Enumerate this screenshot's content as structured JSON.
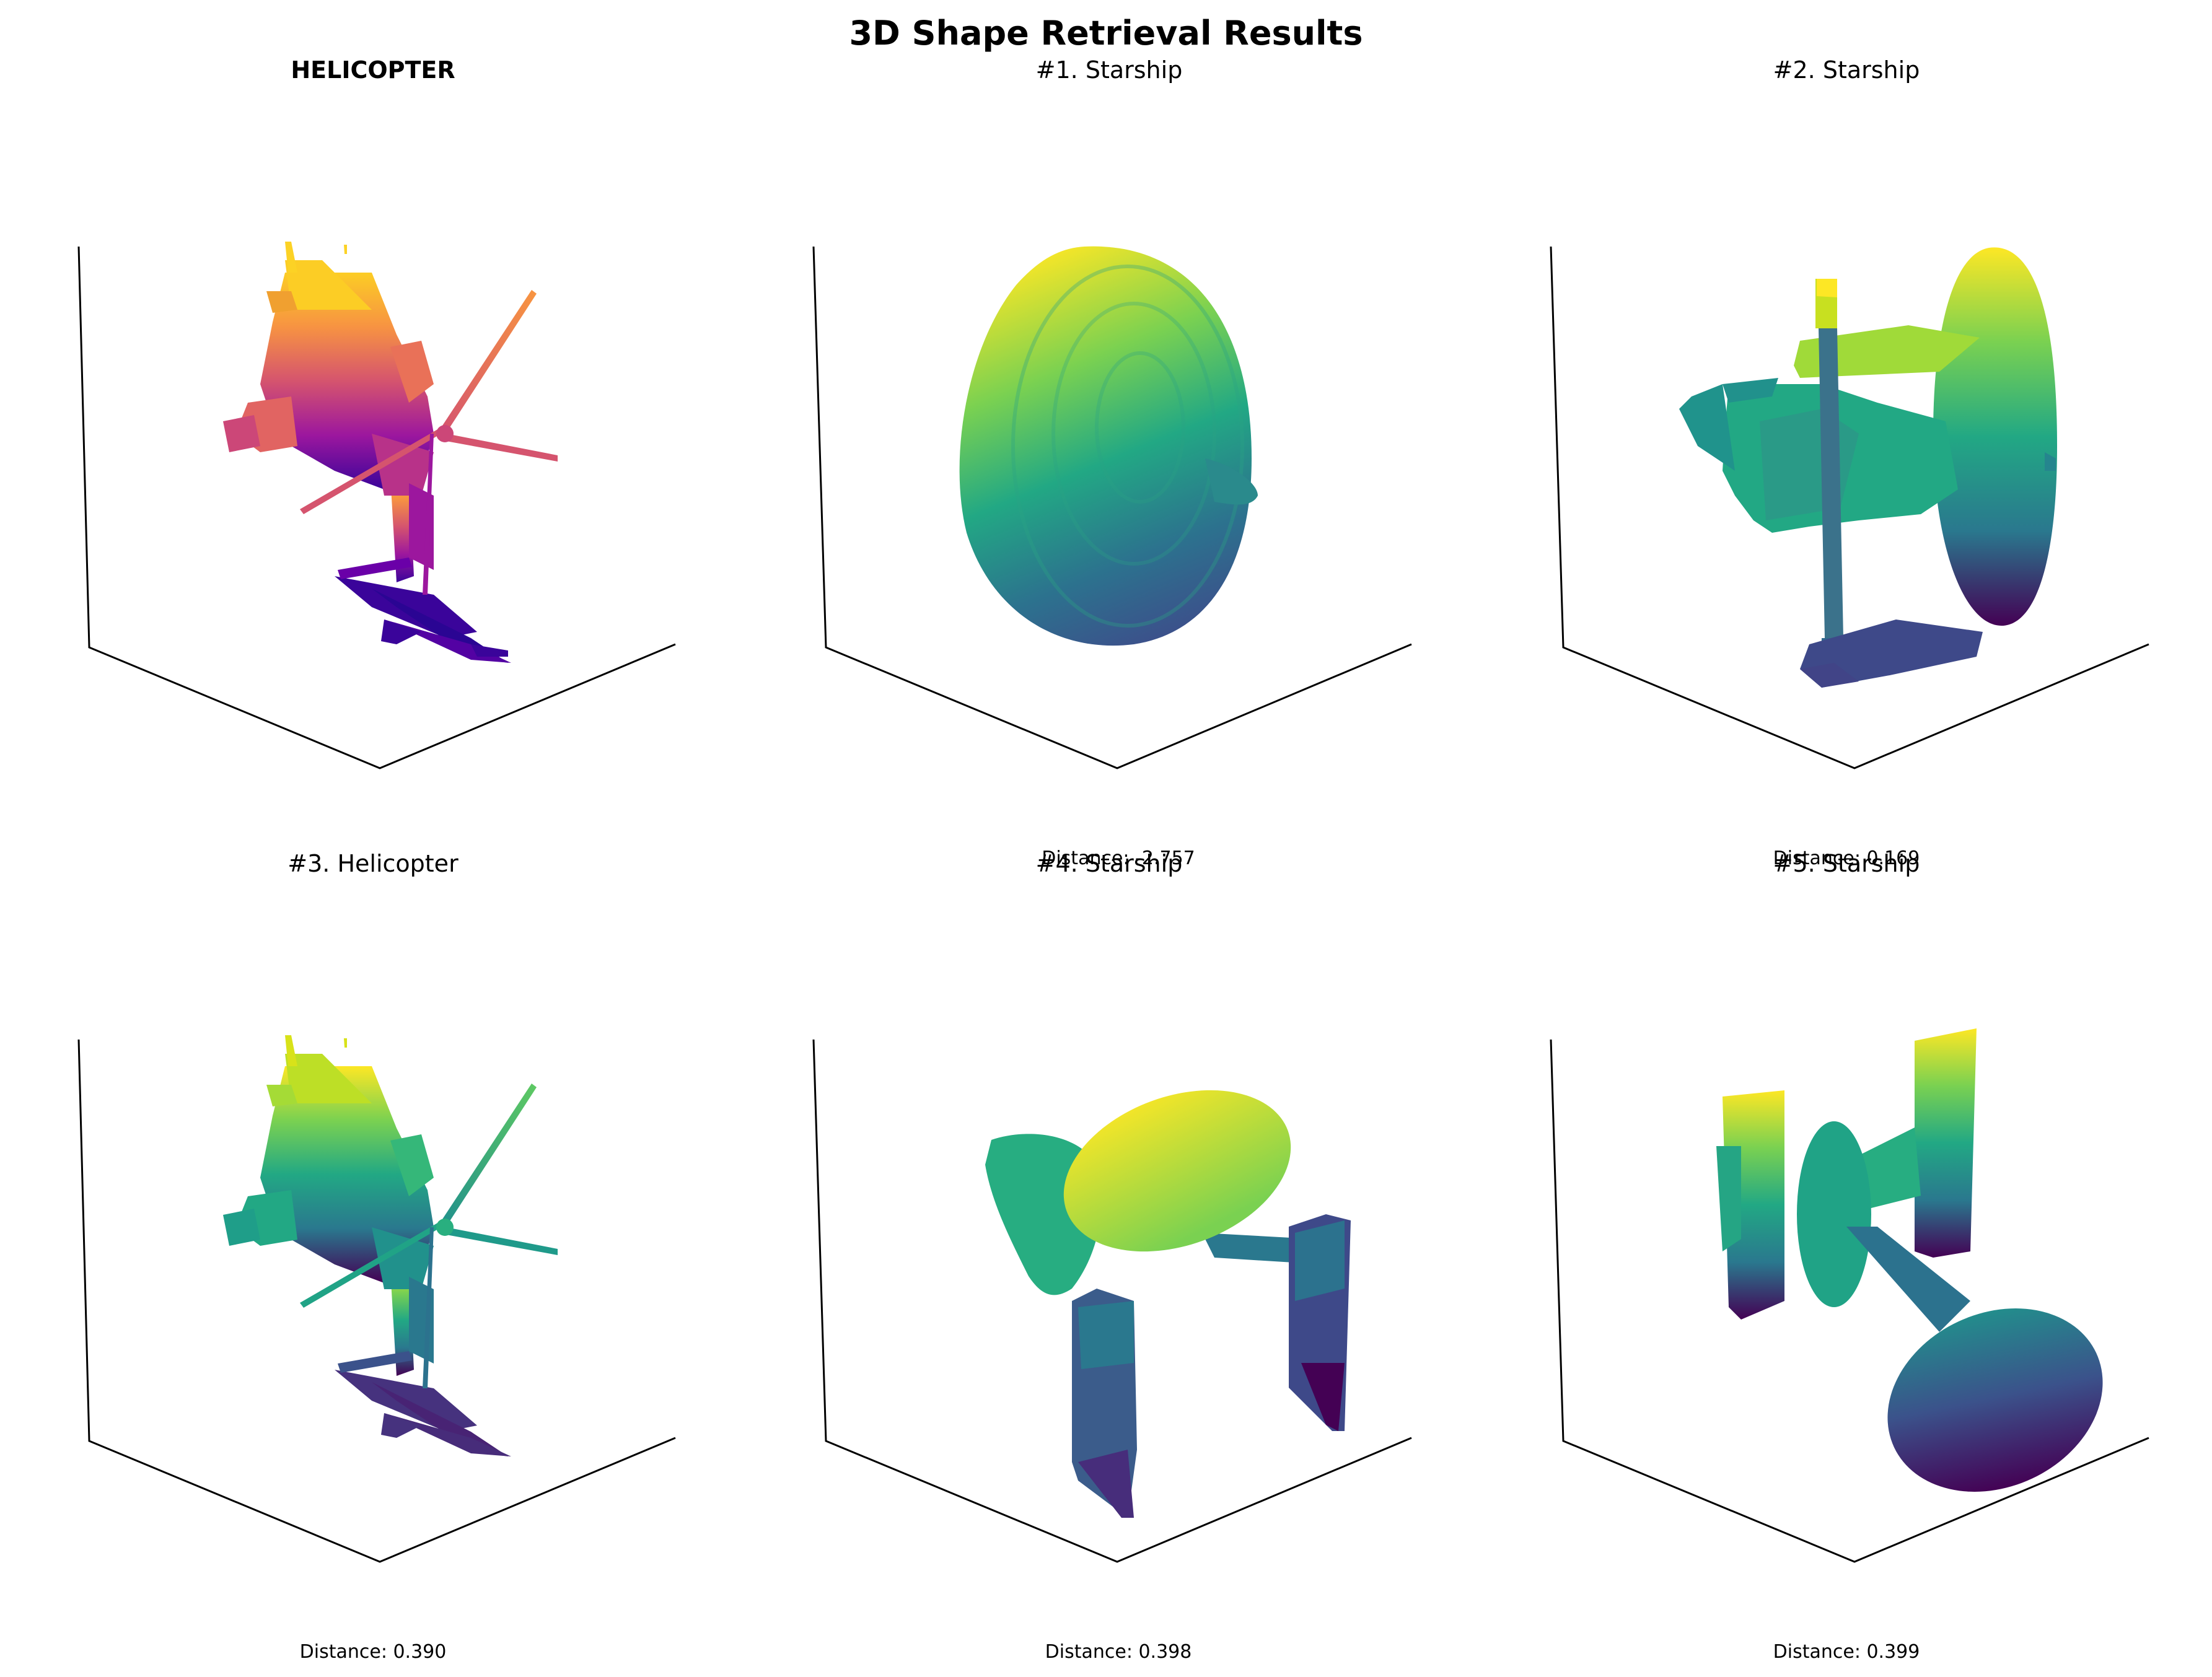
{
  "figure": {
    "title": "3D Shape Retrieval Results"
  },
  "query": {
    "title": "HELICOPTER",
    "title_color": "#ff0000",
    "colormap": "plasma"
  },
  "results": [
    {
      "title": "#1. Starship",
      "distance": "Distance: -2.757",
      "colormap": "viridis",
      "shape": "dish"
    },
    {
      "title": "#2. Starship",
      "distance": "Distance: 0.169",
      "colormap": "viridis",
      "shape": "station"
    },
    {
      "title": "#3. Helicopter",
      "distance": "Distance: 0.390",
      "colormap": "viridis",
      "shape": "helicopter"
    },
    {
      "title": "#4. Starship",
      "distance": "Distance: 0.398",
      "colormap": "viridis",
      "shape": "saucer"
    },
    {
      "title": "#5. Starship",
      "distance": "Distance: 0.399",
      "colormap": "viridis",
      "shape": "cruiser"
    }
  ]
}
